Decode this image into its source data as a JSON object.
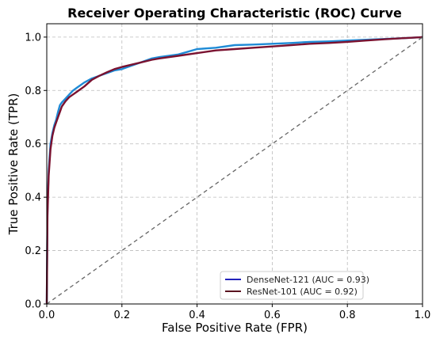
{
  "chart_data": {
    "type": "line",
    "title": "Receiver Operating Characteristic (ROC) Curve",
    "xlabel": "False Positive Rate (FPR)",
    "ylabel": "True Positive Rate (TPR)",
    "xlim": [
      0.0,
      1.0
    ],
    "ylim": [
      0.0,
      1.05
    ],
    "xticks": [
      "0.0",
      "0.2",
      "0.4",
      "0.6",
      "0.8",
      "1.0"
    ],
    "yticks": [
      "0.0",
      "0.2",
      "0.4",
      "0.6",
      "0.8",
      "1.0"
    ],
    "grid": true,
    "legend_position": "lower-right",
    "series": [
      {
        "name": "DenseNet-121 (AUC = 0.93)",
        "legend_color": "#2222bb",
        "line_color": "#1f8bd6",
        "x": [
          0.0,
          0.002,
          0.005,
          0.01,
          0.015,
          0.02,
          0.025,
          0.03,
          0.035,
          0.04,
          0.05,
          0.06,
          0.07,
          0.08,
          0.1,
          0.12,
          0.14,
          0.16,
          0.18,
          0.2,
          0.22,
          0.25,
          0.28,
          0.3,
          0.35,
          0.4,
          0.45,
          0.5,
          0.55,
          0.6,
          0.65,
          0.7,
          0.75,
          0.8,
          0.85,
          0.9,
          0.95,
          1.0
        ],
        "y": [
          0.0,
          0.35,
          0.5,
          0.6,
          0.64,
          0.67,
          0.69,
          0.72,
          0.745,
          0.755,
          0.77,
          0.785,
          0.8,
          0.81,
          0.83,
          0.845,
          0.855,
          0.865,
          0.875,
          0.88,
          0.89,
          0.905,
          0.92,
          0.925,
          0.935,
          0.955,
          0.96,
          0.97,
          0.972,
          0.975,
          0.978,
          0.982,
          0.984,
          0.987,
          0.99,
          0.993,
          0.996,
          1.0
        ]
      },
      {
        "name": "ResNet-101 (AUC = 0.92)",
        "legend_color": "#5a1420",
        "line_color": "#7a1230",
        "x": [
          0.0,
          0.002,
          0.005,
          0.01,
          0.015,
          0.02,
          0.025,
          0.03,
          0.035,
          0.04,
          0.05,
          0.06,
          0.07,
          0.08,
          0.1,
          0.12,
          0.14,
          0.16,
          0.18,
          0.2,
          0.22,
          0.25,
          0.28,
          0.3,
          0.35,
          0.4,
          0.45,
          0.5,
          0.55,
          0.6,
          0.65,
          0.7,
          0.75,
          0.8,
          0.85,
          0.9,
          0.95,
          1.0
        ],
        "y": [
          0.0,
          0.33,
          0.48,
          0.58,
          0.63,
          0.66,
          0.68,
          0.7,
          0.72,
          0.74,
          0.76,
          0.775,
          0.785,
          0.795,
          0.815,
          0.84,
          0.855,
          0.868,
          0.88,
          0.888,
          0.895,
          0.905,
          0.915,
          0.92,
          0.93,
          0.94,
          0.95,
          0.955,
          0.96,
          0.965,
          0.97,
          0.975,
          0.978,
          0.982,
          0.987,
          0.992,
          0.996,
          1.0
        ]
      },
      {
        "name": "",
        "line_color": "#666666",
        "dashed": true,
        "x": [
          0.0,
          1.0
        ],
        "y": [
          0.0,
          1.0
        ]
      }
    ]
  }
}
